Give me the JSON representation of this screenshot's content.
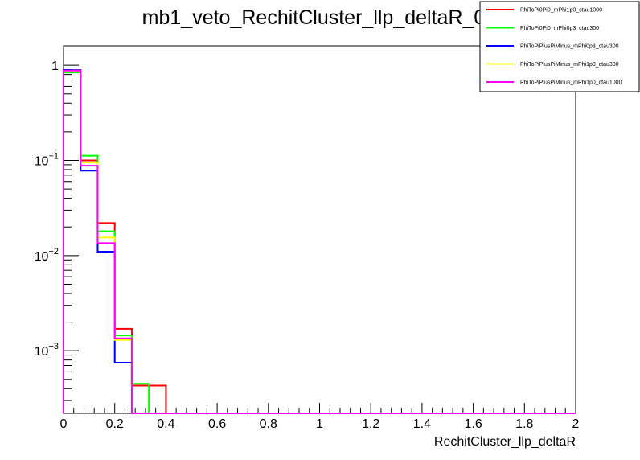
{
  "chart_data": {
    "type": "line",
    "title": "mb1_veto_RechitCluster_llp_deltaR_0",
    "xlabel": "RechitCluster_llp_deltaR",
    "ylabel": "",
    "xlim": [
      0,
      2
    ],
    "ylim": [
      0.00022,
      1.6
    ],
    "y_scale": "log",
    "grid": false,
    "legend_position": "top-right",
    "x_ticks": [
      "0",
      "0.2",
      "0.4",
      "0.6",
      "0.8",
      "1",
      "1.2",
      "1.4",
      "1.6",
      "1.8",
      "2"
    ],
    "y_ticks": [
      {
        "base": "1",
        "exp": ""
      },
      {
        "base": "10",
        "exp": "−1"
      },
      {
        "base": "10",
        "exp": "−2"
      },
      {
        "base": "10",
        "exp": "−3"
      }
    ],
    "bin_edges": [
      0,
      0.0667,
      0.1333,
      0.2,
      0.2667,
      0.3333,
      0.4
    ],
    "series": [
      {
        "name": "PhiToPi0Pi0_mPhi1p0_ctau1000",
        "color": "#ff0000",
        "values": [
          0.87,
          0.1,
          0.022,
          0.0017,
          0.00043,
          0.00043
        ]
      },
      {
        "name": "PhiToPi0Pi0_mPhi0p3_ctau300",
        "color": "#00ff00",
        "values": [
          0.84,
          0.112,
          0.018,
          0.00145,
          0.00045,
          0
        ]
      },
      {
        "name": "PhiToPiPlusPiMinus_mPhi0p3_ctau300",
        "color": "#0000ff",
        "values": [
          0.89,
          0.078,
          0.011,
          0.00075,
          0,
          0
        ]
      },
      {
        "name": "PhiToPiPlusPiMinus_mPhi1p0_ctau300",
        "color": "#ffff00",
        "values": [
          0.86,
          0.095,
          0.0155,
          0.0013,
          0,
          0
        ]
      },
      {
        "name": "PhiToPiPlusPiMinus_mPhi1p0_ctau1000",
        "color": "#ff00ff",
        "values": [
          0.88,
          0.088,
          0.0135,
          0.00135,
          0,
          0
        ]
      }
    ]
  }
}
